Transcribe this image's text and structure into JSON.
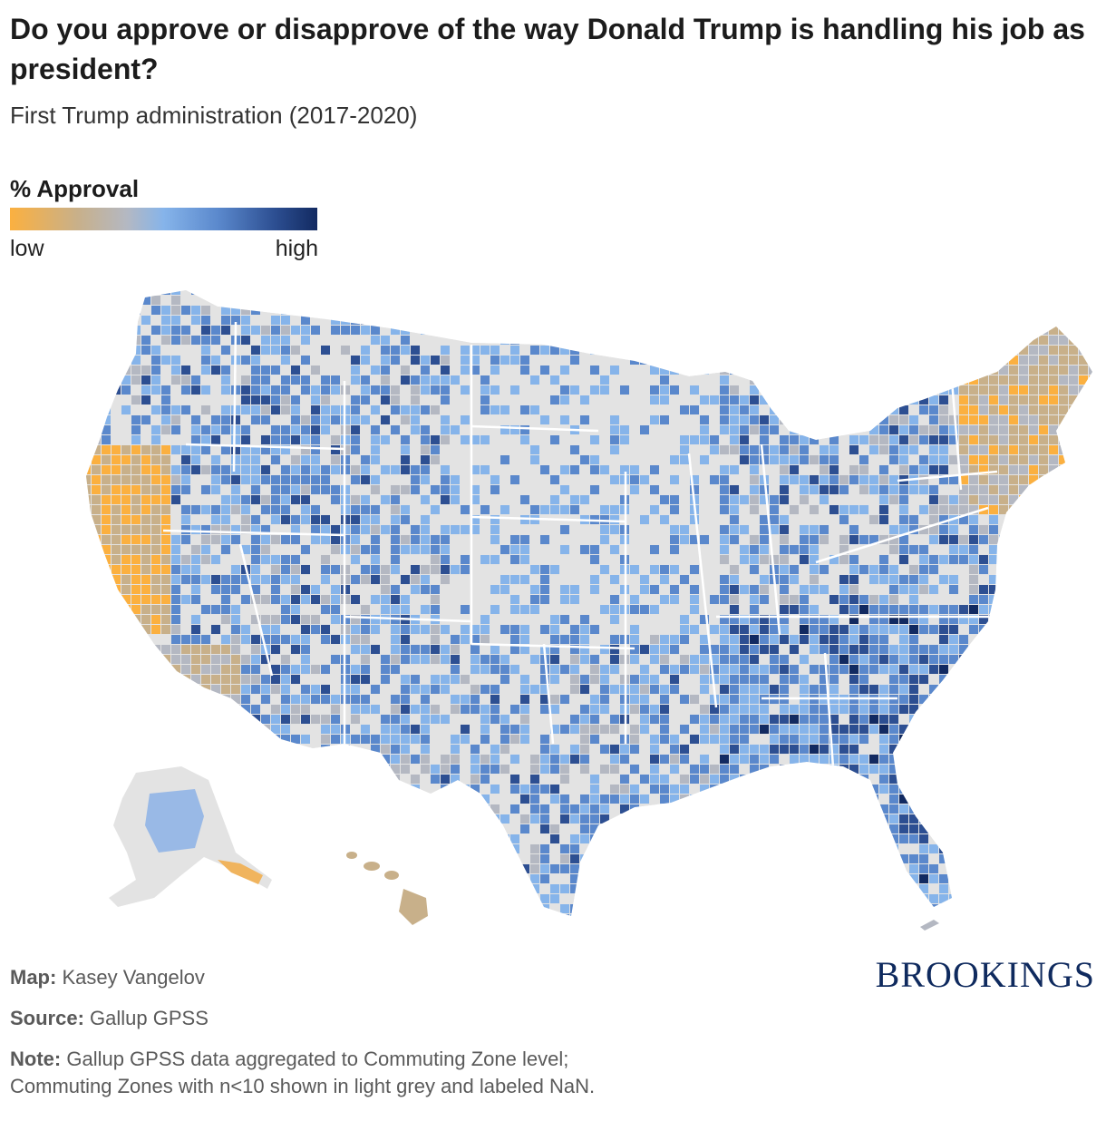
{
  "title": "Do you approve or disapprove of the way Donald Trump is handling his job as president?",
  "subtitle": "First Trump administration (2017-2020)",
  "legend": {
    "title": "% Approval",
    "low": "low",
    "high": "high",
    "colors": [
      "#fbb040",
      "#c8b08a",
      "#b4b8c2",
      "#86b4ea",
      "#5a88cc",
      "#2d4f92",
      "#122a61"
    ]
  },
  "map": {
    "type": "choropleth",
    "geography": "Commuting Zones",
    "nan_color": "#e3e3e3"
  },
  "footer": {
    "map_label": "Map:",
    "map_value": "Kasey Vangelov",
    "source_label": "Source:",
    "source_value": "Gallup GPSS",
    "note_label": "Note:",
    "note_line1": "Gallup GPSS data aggregated to Commuting Zone level;",
    "note_line2": "Commuting Zones with n<10 shown in light grey and labeled NaN."
  },
  "brand": "BROOKINGS"
}
